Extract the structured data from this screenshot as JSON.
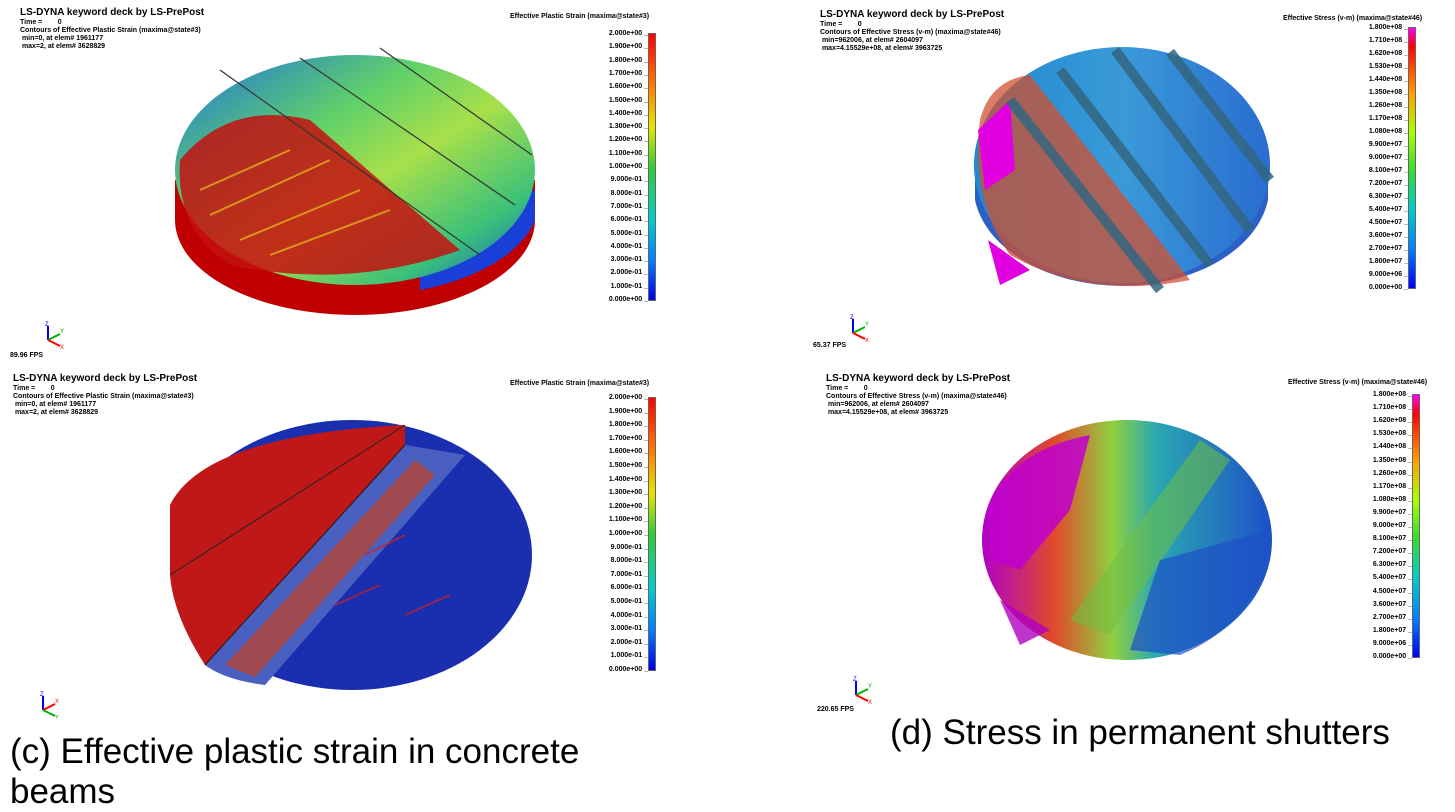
{
  "panels": [
    {
      "id": "a",
      "app_title": "LS-DYNA keyword deck by LS-PrePost",
      "time_label": "Time =        0",
      "contour_label": "Contours of Effective Plastic Strain (maxima@state#3)",
      "min_label": " min=0, at elem# 1961177",
      "max_label": " max=2, at elem# 3628829",
      "legend_title": "Effective Plastic Strain (maxima@state#3)",
      "fps": "89.96 FPS"
    },
    {
      "id": "b",
      "app_title": "LS-DYNA keyword deck by LS-PrePost",
      "time_label": "Time =        0",
      "contour_label": "Contours of Effective Stress (v-m) (maxima@state#46)",
      "min_label": " min=962006, at elem# 2604097",
      "max_label": " max=4.15529e+08, at elem# 3963725",
      "legend_title": "Effective Stress (v-m) (maxima@state#46)",
      "fps": "65.37 FPS"
    },
    {
      "id": "c",
      "app_title": "LS-DYNA keyword deck by LS-PrePost",
      "time_label": "Time =        0",
      "contour_label": "Contours of Effective Plastic Strain (maxima@state#3)",
      "min_label": " min=0, at elem# 1961177",
      "max_label": " max=2, at elem# 3628829",
      "legend_title": "Effective Plastic Strain (maxima@state#3)",
      "fps": ""
    },
    {
      "id": "d",
      "app_title": "LS-DYNA keyword deck by LS-PrePost",
      "time_label": "Time =        0",
      "contour_label": "Contours of Effective Stress (v-m) (maxima@state#46)",
      "min_label": " min=962006, at elem# 2604097",
      "max_label": " max=4.15529e+08, at elem# 3963725",
      "legend_title": "Effective Stress (v-m) (maxima@state#46)",
      "fps": "220.65 FPS"
    }
  ],
  "legends": {
    "strain_ticks": [
      "2.000e+00",
      "1.900e+00",
      "1.800e+00",
      "1.700e+00",
      "1.600e+00",
      "1.500e+00",
      "1.400e+00",
      "1.300e+00",
      "1.200e+00",
      "1.100e+00",
      "1.000e+00",
      "9.000e-01",
      "8.000e-01",
      "7.000e-01",
      "6.000e-01",
      "5.000e-01",
      "4.000e-01",
      "3.000e-01",
      "2.000e-01",
      "1.000e-01",
      "0.000e+00"
    ],
    "stress_ticks": [
      "1.800e+08",
      "1.710e+08",
      "1.620e+08",
      "1.530e+08",
      "1.440e+08",
      "1.350e+08",
      "1.260e+08",
      "1.170e+08",
      "1.080e+08",
      "9.900e+07",
      "9.000e+07",
      "8.100e+07",
      "7.200e+07",
      "6.300e+07",
      "5.400e+07",
      "4.500e+07",
      "3.600e+07",
      "2.700e+07",
      "1.800e+07",
      "9.000e+06",
      "0.000e+00"
    ]
  },
  "axes": {
    "x": "X",
    "y": "Y",
    "z": "Z"
  },
  "colors": {
    "strain_scale": [
      "#ff0000",
      "#ff4000",
      "#ff8000",
      "#ffbf00",
      "#e6e600",
      "#99e600",
      "#33cc33",
      "#00cc66",
      "#00cccc",
      "#0099ff",
      "#0033ff",
      "#0000e6"
    ],
    "stress_scale": [
      "#ff00ff",
      "#ff0000",
      "#ff7f00",
      "#ffd000",
      "#aaff00",
      "#33dd33",
      "#00cc99",
      "#00cccc",
      "#0099ff",
      "#0044ff",
      "#0000ff"
    ]
  },
  "captions": {
    "c": "(c) Effective plastic strain in concrete beams",
    "d": "(d) Stress in permanent shutters"
  }
}
